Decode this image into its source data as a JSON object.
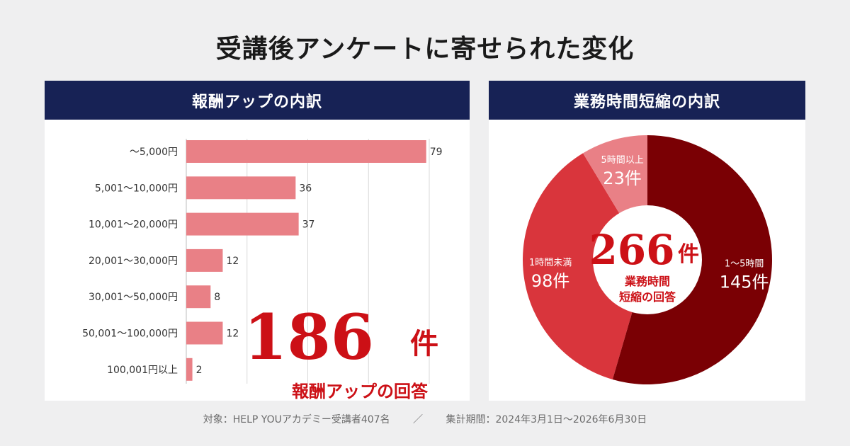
{
  "title": "受講後アンケートに寄せられた変化",
  "left_panel": {
    "header": "報酬アップの内訳",
    "total_number": "186",
    "total_unit": "件",
    "total_caption": "報酬アップの回答"
  },
  "right_panel": {
    "header": "業務時間短縮の内訳",
    "total_number": "266",
    "total_unit": "件",
    "center_line1": "業務時間",
    "center_line2": "短縮の回答"
  },
  "footer": {
    "target": "対象：HELP YOUアカデミー受講者407名",
    "separator": "／",
    "period": "集計期間：2024年3月1日〜2026年6月30日"
  },
  "colors": {
    "bar": "#e98086",
    "header_bg": "#172255",
    "accent_red": "#cc1016",
    "slice_1": "#7a0004",
    "slice_2": "#d9353c",
    "slice_3": "#e98086"
  },
  "chart_data": [
    {
      "type": "bar",
      "orientation": "horizontal",
      "categories": [
        "〜5,000円",
        "5,001〜10,000円",
        "10,001〜20,000円",
        "20,001〜30,000円",
        "30,001〜50,000円",
        "50,001〜100,000円",
        "100,001円以上"
      ],
      "values": [
        79,
        36,
        37,
        12,
        8,
        12,
        2
      ],
      "xlim": [
        0,
        80
      ],
      "grid": true
    },
    {
      "type": "pie",
      "donut": true,
      "slices": [
        {
          "label": "1〜5時間",
          "value": 145,
          "value_label": "145件"
        },
        {
          "label": "1時間未満",
          "value": 98,
          "value_label": "98件"
        },
        {
          "label": "5時間以上",
          "value": 23,
          "value_label": "23件"
        }
      ]
    }
  ]
}
